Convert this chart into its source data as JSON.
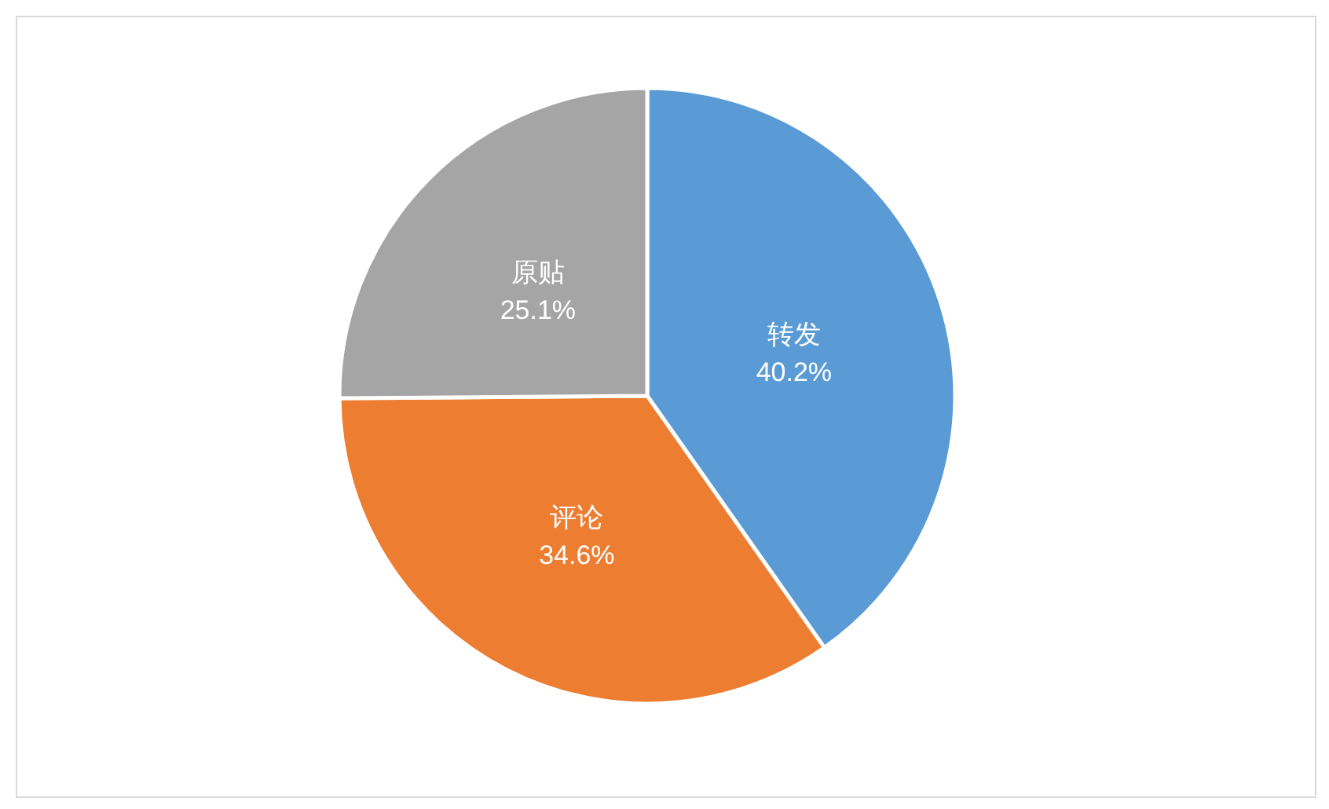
{
  "chart_data": {
    "type": "pie",
    "categories": [
      "转发",
      "评论",
      "原贴"
    ],
    "values": [
      40.2,
      34.6,
      25.1
    ],
    "value_labels": [
      "40.2%",
      "34.6%",
      "25.1%"
    ],
    "colors": [
      "#5b9bd5",
      "#ed7d31",
      "#a5a5a5"
    ],
    "legend": false
  }
}
